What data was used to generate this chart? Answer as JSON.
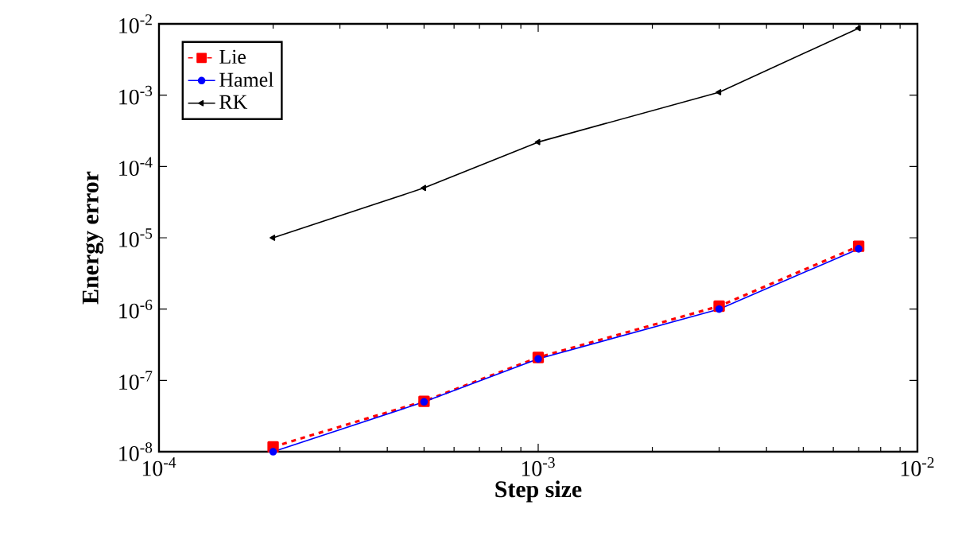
{
  "chart_data": {
    "type": "line",
    "xlabel": "Step size",
    "ylabel": "Energy error",
    "log": "xy",
    "legend": "top left",
    "x": [
      0.0002,
      0.0005,
      0.001,
      0.003,
      0.007
    ],
    "xlim": [
      0.0001,
      0.01
    ],
    "ylim": [
      1e-08,
      0.01
    ],
    "xticks": [
      {
        "value": 0.0001,
        "label": "10$^{-4}$"
      },
      {
        "value": 0.001,
        "label": "10$^{-3}$"
      },
      {
        "value": 0.01,
        "label": "10$^{-2}$"
      }
    ],
    "yticks": [
      {
        "value": 1e-08,
        "label": "10$^{-8}$"
      },
      {
        "value": 1e-07,
        "label": "10$^{-7}$"
      },
      {
        "value": 1e-06,
        "label": "10$^{-6}$"
      },
      {
        "value": 1e-05,
        "label": "10$^{-5}$"
      },
      {
        "value": 0.0001,
        "label": "10$^{-4}$"
      },
      {
        "value": 0.001,
        "label": "10$^{-3}$"
      },
      {
        "value": 0.01,
        "label": "10$^{-2}$"
      }
    ],
    "series": [
      {
        "name": "Lie",
        "color": "#ff0000",
        "marker": "square",
        "line_style": "dashed",
        "values": [
          1.17e-08,
          5.1e-08,
          2.1e-07,
          1.1e-06,
          7.6e-06
        ]
      },
      {
        "name": "Hamel",
        "color": "#0000ff",
        "marker": "circle",
        "line_style": "solid",
        "values": [
          1e-08,
          5e-08,
          2e-07,
          1e-06,
          7e-06
        ]
      },
      {
        "name": "RK",
        "color": "#000000",
        "marker": "triangle",
        "line_style": "solid",
        "values": [
          1e-05,
          5e-05,
          0.00022,
          0.0011,
          0.0087
        ]
      }
    ]
  }
}
